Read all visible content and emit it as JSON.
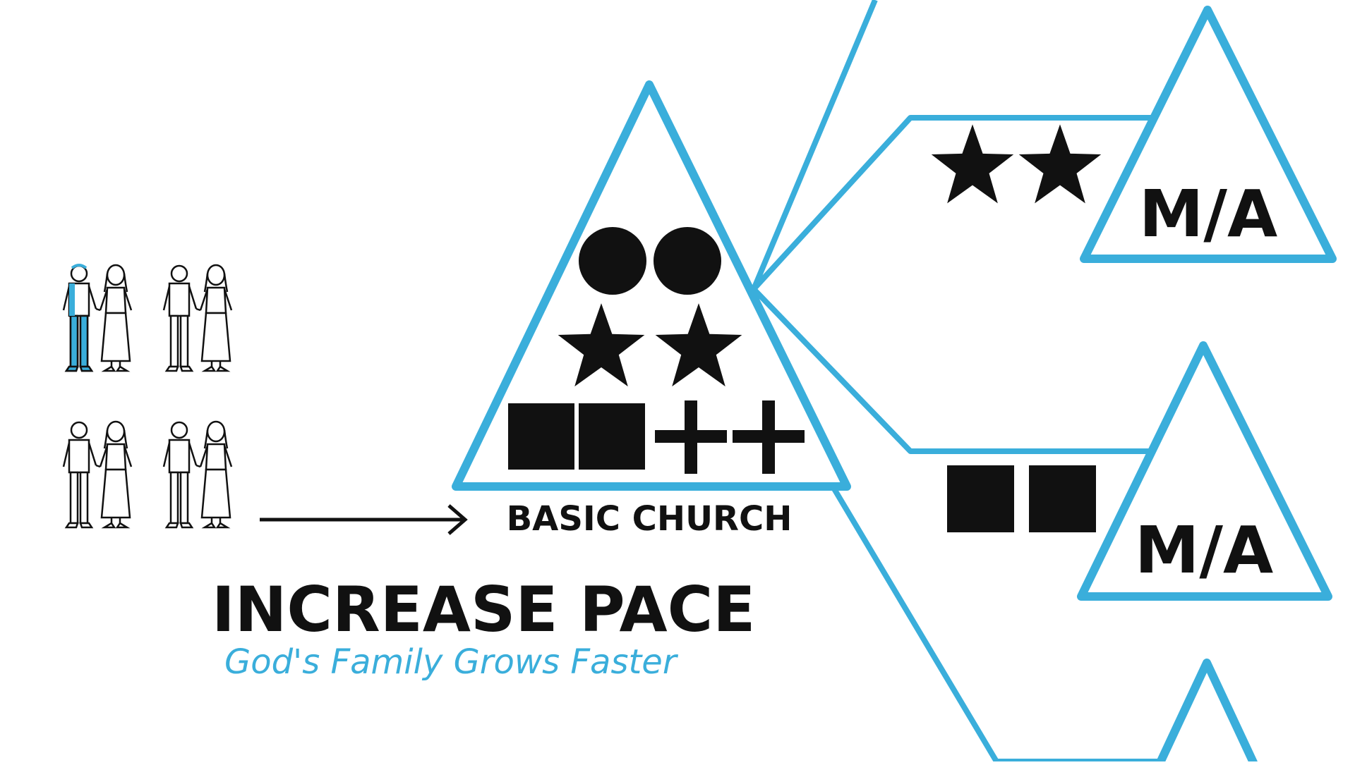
{
  "diagram": {
    "church_label": "BASIC CHURCH",
    "title": "INCREASE PACE",
    "subtitle": "God's Family Grows Faster",
    "branch_top_label": "M/A",
    "branch_bottom_label": "M/A"
  },
  "colors": {
    "accent": "#3aaedb",
    "ink": "#111111",
    "background": "#ffffff"
  },
  "icons": {
    "people": "people-couples-icon",
    "arrow": "arrow-right-icon",
    "circle": "circle-icon",
    "star": "star-icon",
    "square": "square-icon",
    "plus": "plus-icon"
  }
}
